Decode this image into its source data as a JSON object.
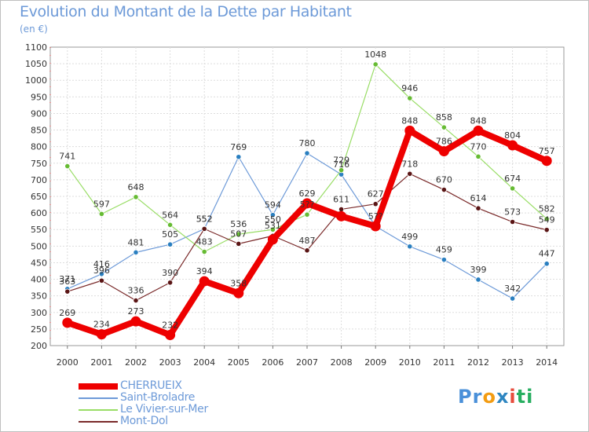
{
  "header": {
    "title": "Evolution du Montant de la Dette par Habitant",
    "unit": "(en €)"
  },
  "logo": {
    "parts": [
      "Pr",
      "o",
      "x",
      "i",
      "ti"
    ],
    "colors": [
      "#4a90d9",
      "#f39c12",
      "#2e86c1",
      "#e74c3c",
      "#27ae60"
    ]
  },
  "chart_data": {
    "type": "line",
    "x": [
      2000,
      2001,
      2002,
      2003,
      2004,
      2005,
      2006,
      2007,
      2008,
      2009,
      2010,
      2011,
      2012,
      2013,
      2014
    ],
    "ylim": [
      200,
      1100
    ],
    "yticks": [
      200,
      250,
      300,
      350,
      400,
      450,
      500,
      550,
      600,
      650,
      700,
      750,
      800,
      850,
      900,
      950,
      1000,
      1050,
      1100
    ],
    "grid": true,
    "legend_position": "bottom-left",
    "series": [
      {
        "name": "CHERRUEIX",
        "color": "#ee0000",
        "point_color": "#ee0000",
        "values": [
          269,
          234,
          273,
          232,
          394,
          358,
          520,
          629,
          590,
          560,
          848,
          786,
          848,
          804,
          757
        ],
        "labels": [
          "269",
          "234",
          "273",
          "232",
          "394",
          "358",
          "",
          "629",
          "",
          "",
          "848",
          "786",
          "848",
          "804",
          "757"
        ]
      },
      {
        "name": "Saint-Broladre",
        "color": "#6d9ad8",
        "point_color": "#2a7fc0",
        "values": [
          371,
          416,
          481,
          505,
          552,
          769,
          594,
          780,
          716,
          560,
          499,
          459,
          399,
          342,
          447
        ],
        "labels": [
          "371",
          "416",
          "481",
          "505",
          "552",
          "769",
          "594",
          "780",
          "716",
          "5??",
          "499",
          "459",
          "399",
          "342",
          "447"
        ]
      },
      {
        "name": "Le Vivier-sur-Mer",
        "color": "#99dd66",
        "point_color": "#66bb33",
        "values": [
          741,
          597,
          648,
          564,
          483,
          536,
          550,
          595,
          729,
          1048,
          946,
          858,
          770,
          674,
          582
        ],
        "labels": [
          "741",
          "597",
          "648",
          "564",
          "483",
          "536",
          "550",
          "5??",
          "729",
          "1048",
          "946",
          "858",
          "770",
          "674",
          "582"
        ]
      },
      {
        "name": "Mont-Dol",
        "color": "#7a2a2a",
        "point_color": "#5a1515",
        "values": [
          363,
          396,
          336,
          390,
          552,
          507,
          531,
          487,
          611,
          627,
          718,
          670,
          614,
          573,
          549
        ],
        "labels": [
          "363",
          "396",
          "336",
          "390",
          "552",
          "507",
          "531",
          "487",
          "611",
          "627",
          "718",
          "670",
          "614",
          "573",
          "549"
        ]
      }
    ]
  }
}
